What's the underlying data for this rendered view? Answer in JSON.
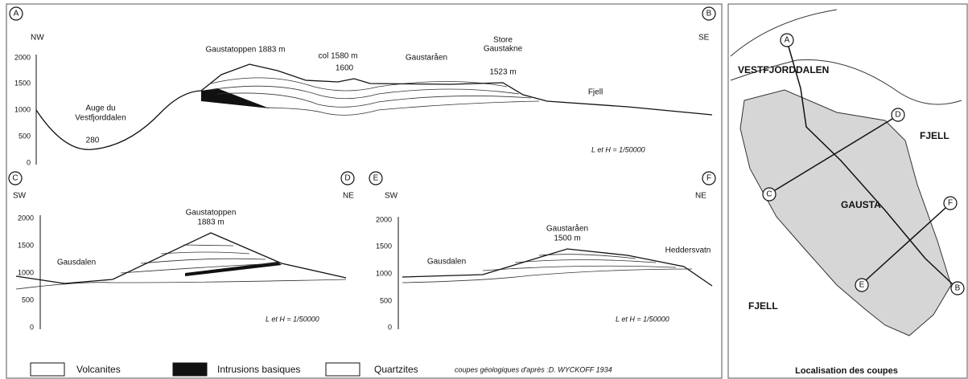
{
  "sections": [
    {
      "start": "A",
      "end": "B",
      "dir_left": "NW",
      "dir_right": "SE",
      "yticks": [
        "2000",
        "1500",
        "1000",
        "500",
        "0"
      ],
      "labels": [
        "Gaustatoppen 1883 m",
        "col 1580 m",
        "1600",
        "Gaustaråen",
        "Store",
        "Gaustakne",
        "1523 m",
        "Fjell",
        "Auge du",
        "Vestfjorddalen",
        "280"
      ],
      "scale": "L et H = 1/50000"
    },
    {
      "start": "C",
      "end": "D",
      "dir_left": "SW",
      "dir_right": "NE",
      "yticks": [
        "2000",
        "1500",
        "1000",
        "500",
        "0"
      ],
      "labels": [
        "Gaustatoppen",
        "1883 m",
        "Gausdalen"
      ],
      "scale": "L et H = 1/50000"
    },
    {
      "start": "E",
      "end": "F",
      "dir_left": "SW",
      "dir_right": "NE",
      "yticks": [
        "2000",
        "1500",
        "1000",
        "500",
        "0"
      ],
      "labels": [
        "Gaustaråen",
        "1500 m",
        "Gausdalen",
        "Heddersvatn"
      ],
      "scale": "L et H = 1/50000"
    }
  ],
  "legend": [
    "Volcanites",
    "Intrusions basiques",
    "Quartzites"
  ],
  "credit": "coupes géologiques d'après :D. WYCKOFF 1934",
  "map": {
    "points": [
      "A",
      "B",
      "C",
      "D",
      "E",
      "F"
    ],
    "places": [
      "VESTFJORDDALEN",
      "FJELL",
      "GAUSTA",
      "FJELL"
    ],
    "caption": "Localisation des coupes"
  }
}
